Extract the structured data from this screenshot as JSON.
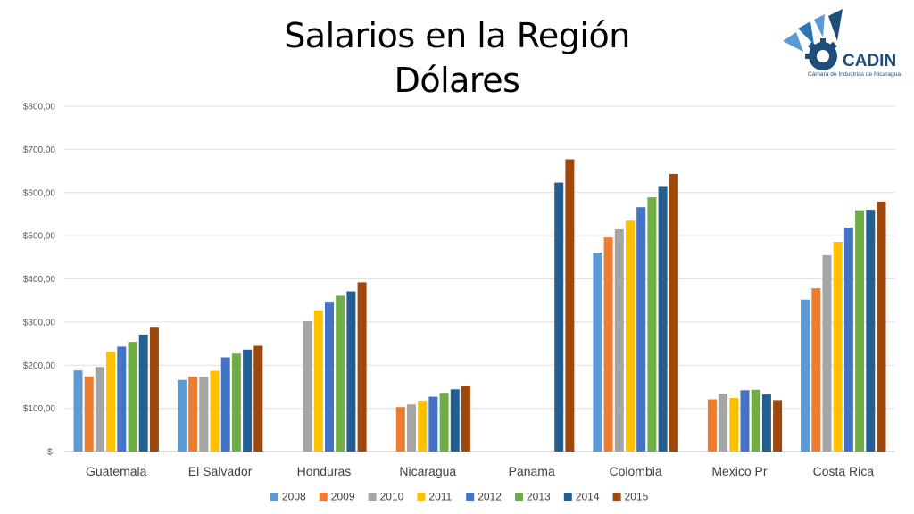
{
  "title_line1": "Salarios en la Región",
  "title_line2": "Dólares",
  "logo": {
    "name": "CADIN",
    "subtitle": "Cámara de Industrias de Nicaragua",
    "color": "#1f4e79"
  },
  "chart_data": {
    "type": "bar",
    "title": "Salarios en la Región Dólares",
    "categories": [
      "Guatemala",
      "El Salvador",
      "Honduras",
      "Nicaragua",
      "Panama",
      "Colombia",
      "Mexico Pr",
      "Costa Rica"
    ],
    "series": [
      {
        "name": "2008",
        "color": "#5b9bd5",
        "values": [
          188,
          166,
          null,
          null,
          null,
          461,
          null,
          352
        ]
      },
      {
        "name": "2009",
        "color": "#ed7d31",
        "values": [
          174,
          173,
          null,
          103,
          null,
          496,
          121,
          378
        ]
      },
      {
        "name": "2010",
        "color": "#a5a5a5",
        "values": [
          196,
          173,
          302,
          109,
          null,
          515,
          134,
          455
        ]
      },
      {
        "name": "2011",
        "color": "#ffc000",
        "values": [
          231,
          187,
          327,
          118,
          null,
          535,
          124,
          486
        ]
      },
      {
        "name": "2012",
        "color": "#4472c4",
        "values": [
          243,
          218,
          347,
          127,
          null,
          566,
          142,
          519
        ]
      },
      {
        "name": "2013",
        "color": "#70ad47",
        "values": [
          254,
          227,
          361,
          136,
          null,
          589,
          143,
          559
        ]
      },
      {
        "name": "2014",
        "color": "#255e91",
        "values": [
          271,
          236,
          371,
          144,
          623,
          615,
          132,
          560
        ]
      },
      {
        "name": "2015",
        "color": "#9e480e",
        "values": [
          287,
          245,
          392,
          153,
          677,
          643,
          119,
          579
        ]
      }
    ],
    "y_ticks": [
      {
        "value": 0,
        "label": "$-"
      },
      {
        "value": 100,
        "label": "$100,00"
      },
      {
        "value": 200,
        "label": "$200,00"
      },
      {
        "value": 300,
        "label": "$300,00"
      },
      {
        "value": 400,
        "label": "$400,00"
      },
      {
        "value": 500,
        "label": "$500,00"
      },
      {
        "value": 600,
        "label": "$600,00"
      },
      {
        "value": 700,
        "label": "$700,00"
      },
      {
        "value": 800,
        "label": "$800,00"
      }
    ],
    "ylim": [
      0,
      800
    ],
    "grid": true,
    "legend_position": "bottom"
  }
}
